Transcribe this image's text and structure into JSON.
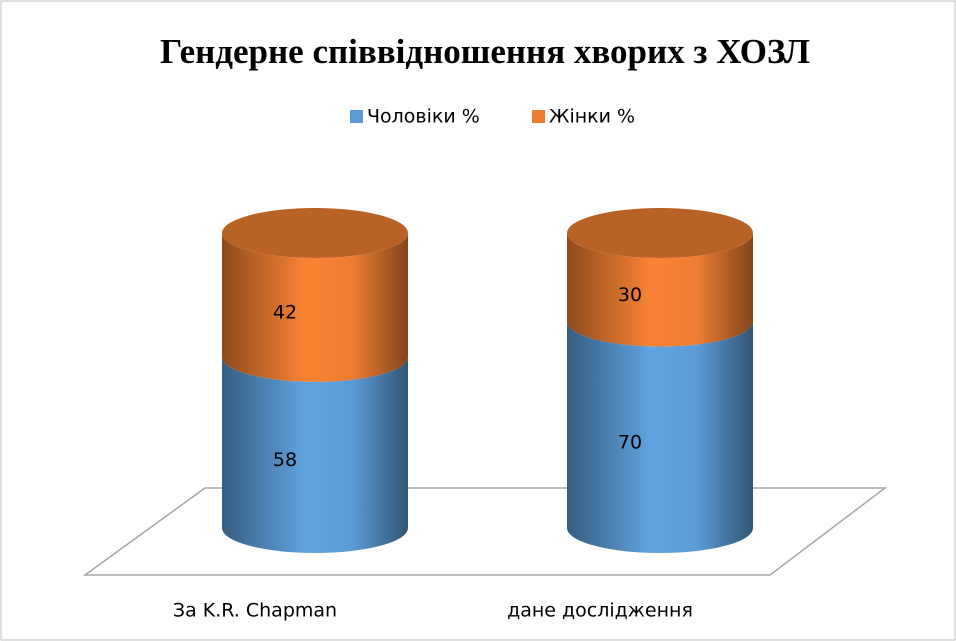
{
  "chart_data": {
    "type": "cylinder-stacked-bar",
    "title": "Гендерне співвідношення хворих з ХОЗЛ",
    "categories": [
      "За K.R. Chapman",
      "дане дослідження"
    ],
    "series": [
      {
        "name": "Чоловіки %",
        "color": "#5b9bd5",
        "values": [
          58,
          70
        ]
      },
      {
        "name": "Жінки %",
        "color": "#ed7d31",
        "values": [
          42,
          30
        ]
      }
    ],
    "legend": "top"
  }
}
